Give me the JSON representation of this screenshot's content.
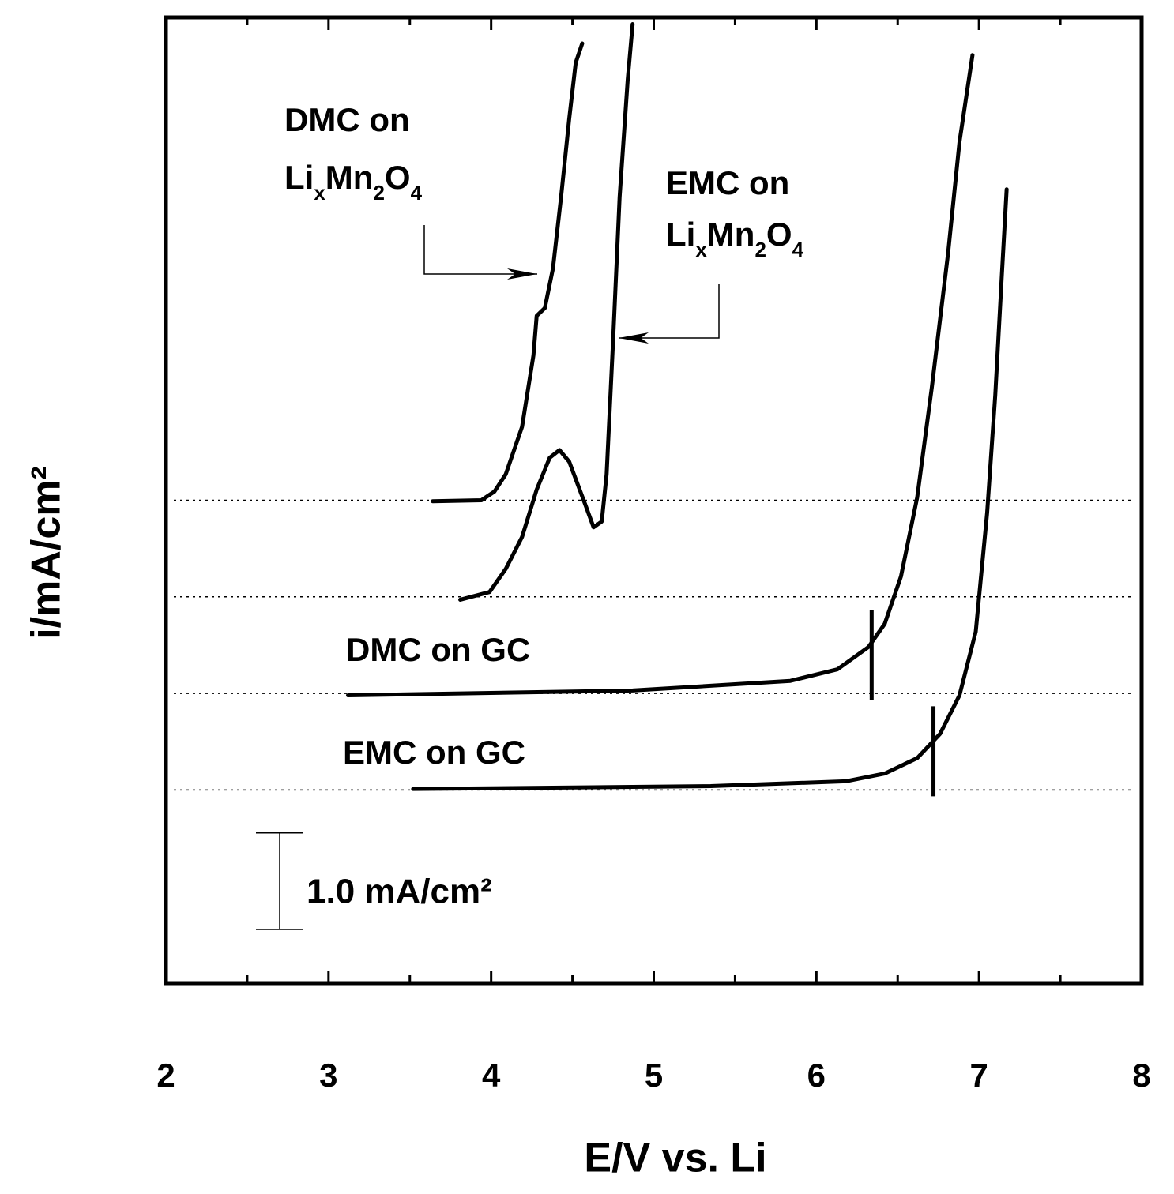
{
  "chart_data": {
    "type": "line",
    "xlabel": "E/V vs. Li",
    "ylabel": "i/mA/cm²",
    "xlim": [
      2,
      8
    ],
    "xticks": [
      2,
      3,
      4,
      5,
      6,
      7,
      8
    ],
    "ylim": [
      0,
      10
    ],
    "color": "#000000",
    "series": [
      {
        "name": "DMC on",
        "name_sub": [
          "Li",
          "x",
          "Mn",
          "2",
          "O",
          "4"
        ],
        "baseline": 5,
        "x": [
          3.64,
          3.94,
          4.02,
          4.09,
          4.19,
          4.26,
          4.28,
          4.33,
          4.38,
          4.43,
          4.48,
          4.52,
          4.56
        ],
        "values": [
          4.99,
          5.0,
          5.09,
          5.27,
          5.76,
          6.5,
          6.91,
          6.99,
          7.4,
          8.14,
          8.95,
          9.53,
          9.73
        ]
      },
      {
        "name": "EMC on",
        "name_sub": [
          "Li",
          "x",
          "Mn",
          "2",
          "O",
          "4"
        ],
        "baseline": 4,
        "x": [
          3.81,
          3.99,
          4.09,
          4.19,
          4.28,
          4.36,
          4.42,
          4.48,
          4.58,
          4.63,
          4.68,
          4.71,
          4.75,
          4.79,
          4.84,
          4.87
        ],
        "values": [
          3.97,
          4.05,
          4.29,
          4.62,
          5.11,
          5.44,
          5.52,
          5.4,
          4.95,
          4.72,
          4.78,
          5.27,
          6.66,
          8.14,
          9.36,
          9.93
        ]
      },
      {
        "name": "DMC on GC",
        "baseline": 3,
        "marker_x": 6.34,
        "x": [
          3.12,
          4.87,
          5.84,
          6.13,
          6.32,
          6.42,
          6.52,
          6.62,
          6.71,
          6.81,
          6.88,
          6.96
        ],
        "values": [
          2.98,
          3.03,
          3.13,
          3.25,
          3.48,
          3.72,
          4.21,
          5.03,
          6.17,
          7.56,
          8.71,
          9.61
        ]
      },
      {
        "name": "EMC on GC",
        "baseline": 2,
        "marker_x": 6.72,
        "x": [
          3.52,
          5.35,
          6.18,
          6.42,
          6.62,
          6.76,
          6.88,
          6.98,
          7.05,
          7.1,
          7.14,
          7.17
        ],
        "values": [
          2.01,
          2.04,
          2.09,
          2.17,
          2.33,
          2.58,
          2.98,
          3.64,
          4.87,
          6.09,
          7.32,
          8.22
        ]
      }
    ],
    "scale_bar": {
      "value": 1.0,
      "label": "1.0 mA/cm²"
    }
  }
}
